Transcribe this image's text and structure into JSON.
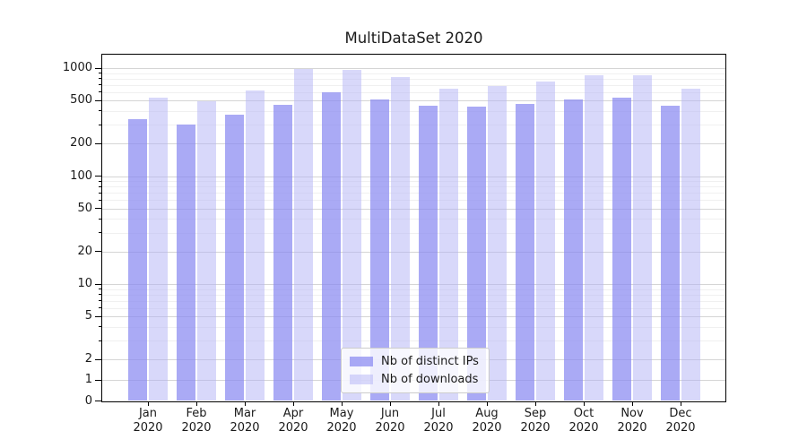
{
  "chart_data": {
    "type": "bar",
    "title": "MultiDataSet 2020",
    "year_label": "2020",
    "months": [
      "Jan",
      "Feb",
      "Mar",
      "Apr",
      "May",
      "Jun",
      "Jul",
      "Aug",
      "Sep",
      "Oct",
      "Nov",
      "Dec"
    ],
    "categories": [
      "Jan 2020",
      "Feb 2020",
      "Mar 2020",
      "Apr 2020",
      "May 2020",
      "Jun 2020",
      "Jul 2020",
      "Aug 2020",
      "Sep 2020",
      "Oct 2020",
      "Nov 2020",
      "Dec 2020"
    ],
    "series": [
      {
        "name": "Nb of distinct IPs",
        "color": "rgba(134,134,241,0.70)",
        "solid_color": "#aaaaf5",
        "values": [
          335,
          300,
          370,
          460,
          600,
          515,
          450,
          440,
          465,
          515,
          535,
          450
        ]
      },
      {
        "name": "Nb of downloads",
        "color": "rgba(177,177,245,0.50)",
        "solid_color": "#d8d8fa",
        "values": [
          535,
          495,
          620,
          980,
          960,
          830,
          645,
          685,
          750,
          860,
          860,
          650
        ]
      }
    ],
    "yscale": "symlog",
    "ylim": [
      0,
      1350
    ],
    "y_major_ticks": [
      0,
      1,
      2,
      5,
      10,
      20,
      50,
      100,
      200,
      500,
      1000
    ],
    "y_minor_ticks": [
      3,
      4,
      6,
      7,
      8,
      9,
      30,
      40,
      60,
      70,
      80,
      90,
      300,
      400,
      600,
      700,
      800,
      900
    ],
    "grid": "horizontal major and minor gridlines",
    "legend_position": "lower center"
  },
  "colors": {
    "grid_major": "#d5d5d5",
    "grid_minor": "#f0f0f0",
    "axis": "#000000",
    "text": "#1a1a1a",
    "background": "#ffffff"
  }
}
